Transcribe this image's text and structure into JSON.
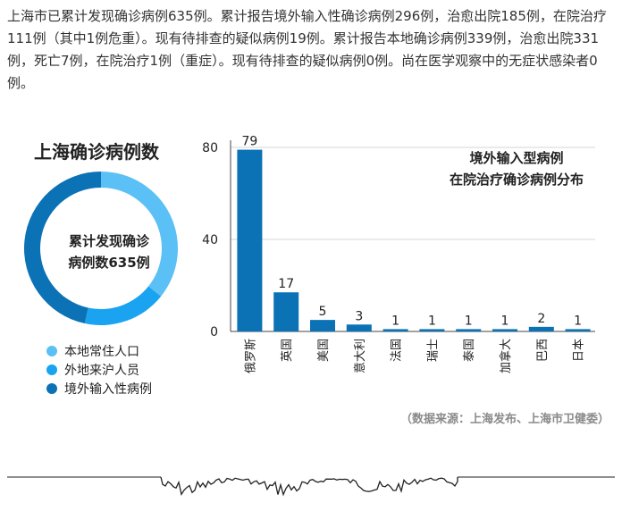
{
  "intro": "上海市已累计发现确诊病例635例。累计报告境外输入性确诊病例296例，治愈出院185例，在院治疗111例（其中1例危重）。现有待排查的疑似病例19例。累计报告本地确诊病例339例，治愈出院331例，死亡7例，在院治疗1例（重症）。现有待排查的疑似病例0例。尚在医学观察中的无症状感染者0例。",
  "donut": {
    "title": "上海确诊病例数",
    "center_line1": "累计发现确诊",
    "center_line2": "病例数635例",
    "legend": [
      {
        "label": "本地常住人口",
        "color": "#5bc0f5"
      },
      {
        "label": "外地来沪人员",
        "color": "#1aa3f0"
      },
      {
        "label": "境外输入性病例",
        "color": "#0b72b6"
      }
    ]
  },
  "chart_data": [
    {
      "type": "pie",
      "title": "上海确诊病例数",
      "labels": [
        "本地常住人口",
        "外地来沪人员",
        "境外输入性病例"
      ],
      "values": [
        227,
        112,
        296
      ]
    },
    {
      "type": "bar",
      "title": "境外输入型病例\n在院治疗确诊病例分布",
      "title_lines": [
        "境外输入型病例",
        "在院治疗确诊病例分布"
      ],
      "categories": [
        "俄罗斯",
        "英国",
        "美国",
        "意大利",
        "法国",
        "瑞士",
        "泰国",
        "加拿大",
        "巴西",
        "日本"
      ],
      "values": [
        79,
        17,
        5,
        3,
        1,
        1,
        1,
        1,
        2,
        1
      ],
      "yticks": [
        0,
        40,
        80
      ],
      "ylim": [
        0,
        85
      ],
      "grid": true,
      "bar_color": "#0b72b6"
    }
  ],
  "footnote": "（数据来源：上海发布、上海市卫健委）"
}
